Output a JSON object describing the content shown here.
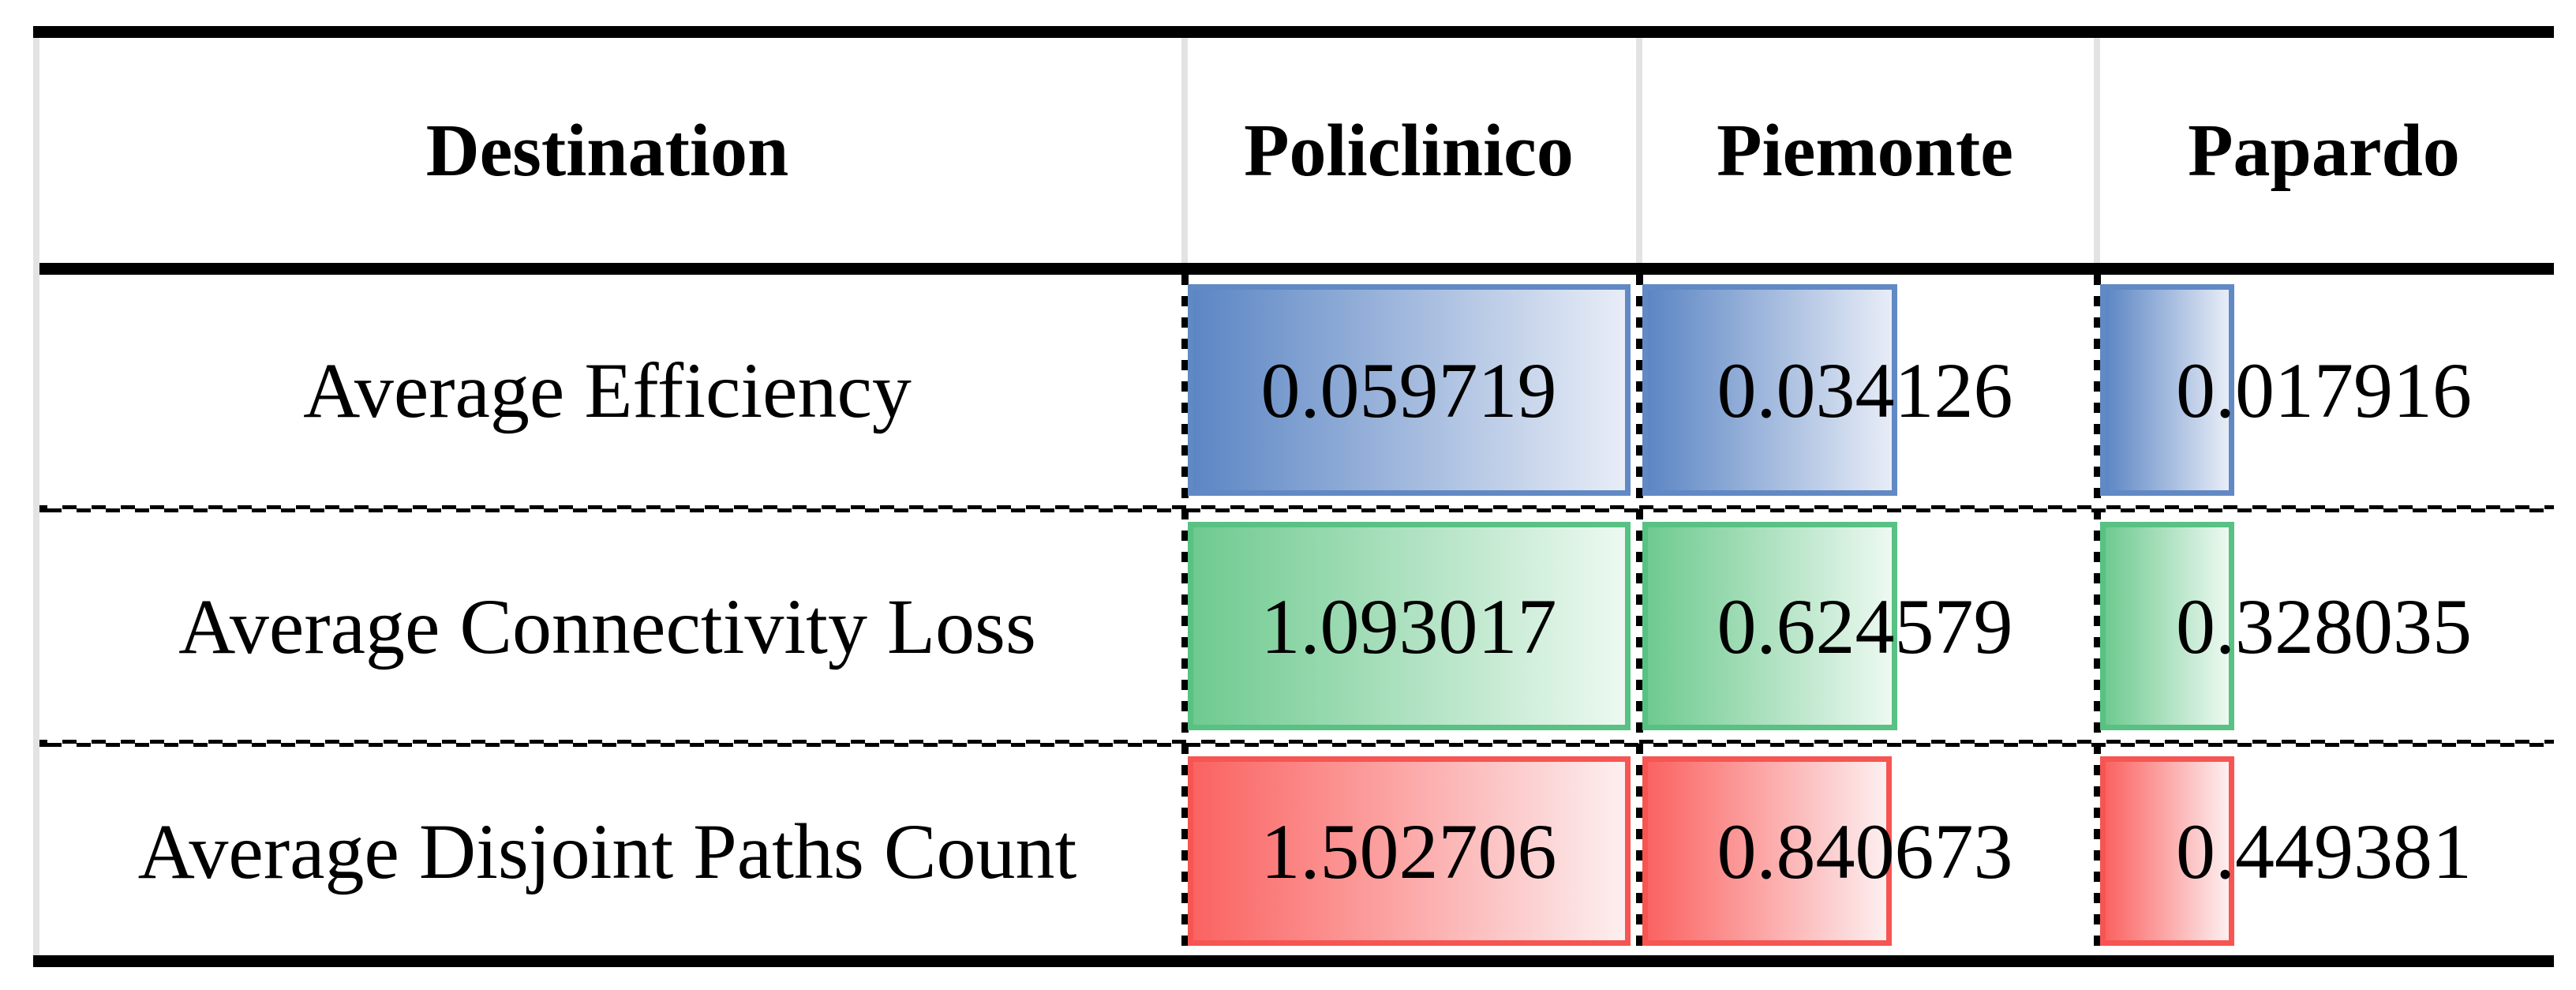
{
  "table": {
    "header": [
      "Destination",
      "Policlinico",
      "Piemonte",
      "Papardo"
    ],
    "rows": [
      {
        "label": "Average Efficiency",
        "values": [
          "0.059719",
          "0.034126",
          "0.017916"
        ],
        "bar_color": "blue"
      },
      {
        "label": "Average Connectivity Loss",
        "values": [
          "1.093017",
          "0.624579",
          "0.328035"
        ],
        "bar_color": "green"
      },
      {
        "label": "Average Disjoint Paths Count",
        "values": [
          "1.502706",
          "0.840673",
          "0.449381"
        ],
        "bar_color": "red"
      }
    ],
    "colors": {
      "blue": {
        "border": "#6189C4",
        "fill_start": "#5C86C4",
        "fill_end": "#E8EDF7"
      },
      "green": {
        "border": "#58C183",
        "fill_start": "#6FCA90",
        "fill_end": "#EDF9F1"
      },
      "red": {
        "border": "#F65552",
        "fill_start": "#FA6361",
        "fill_end": "#FDEFF0"
      }
    },
    "line_colors": {
      "thick_rule": "#000000",
      "header_divider": "#E3E3E3",
      "dashed_divider": "#000000"
    }
  },
  "chart_data": {
    "type": "table",
    "title": "",
    "columns": [
      "Destination",
      "Policlinico",
      "Piemonte",
      "Papardo"
    ],
    "series": [
      {
        "name": "Average Efficiency",
        "values": [
          0.059719,
          0.034126,
          0.017916
        ],
        "bar_color": "blue"
      },
      {
        "name": "Average Connectivity Loss",
        "values": [
          1.093017,
          0.624579,
          0.328035
        ],
        "bar_color": "green"
      },
      {
        "name": "Average Disjoint Paths Count",
        "values": [
          1.502706,
          0.840673,
          0.449381
        ],
        "bar_color": "red"
      }
    ],
    "layout": "in-cell data bars, each row scaled to its own maximum; gradient fill left-to-right"
  }
}
